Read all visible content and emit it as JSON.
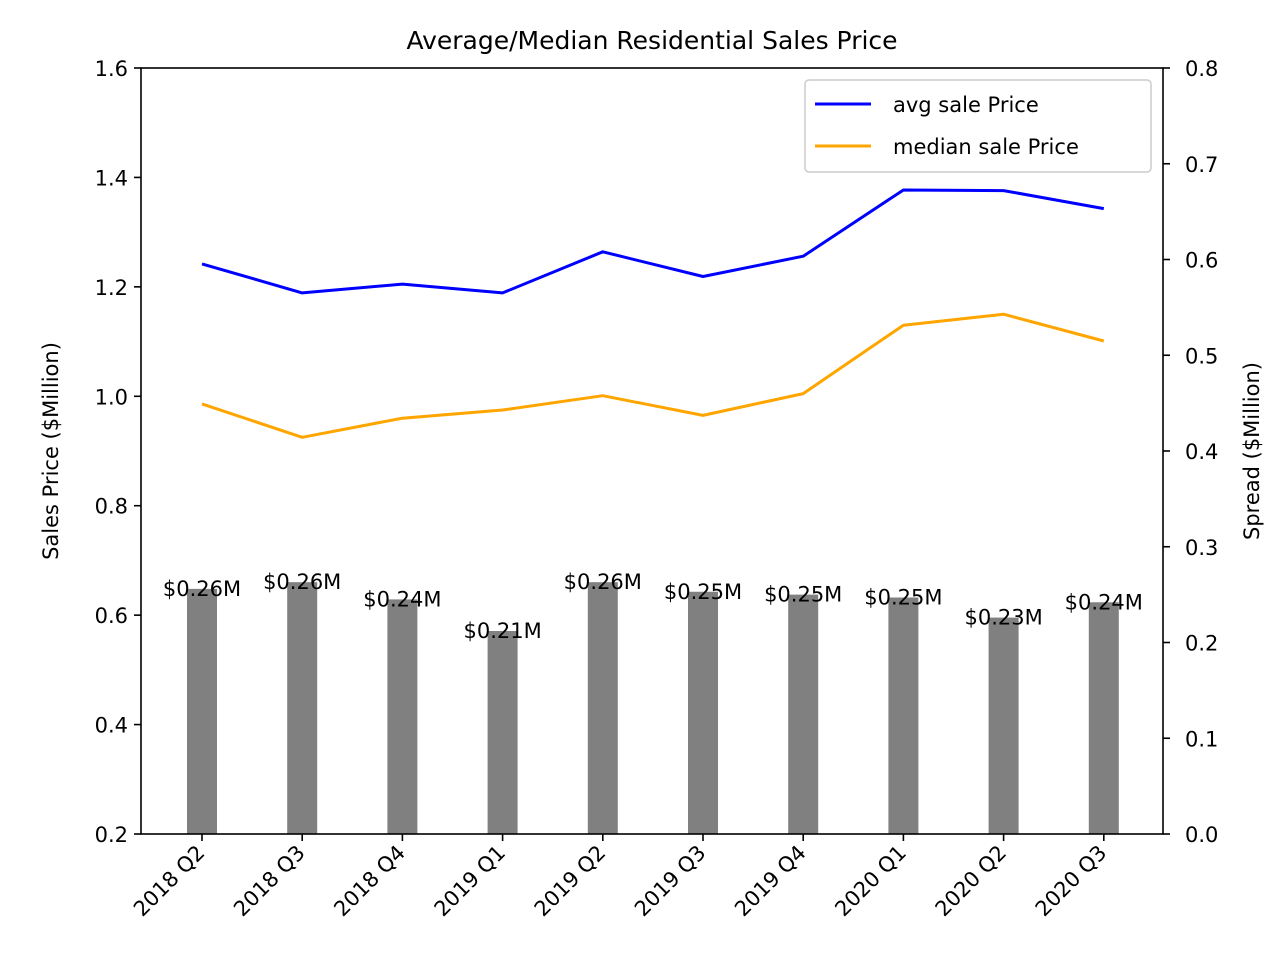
{
  "chart_data": {
    "type": "bar+line (dual axis)",
    "title": "Average/Median Residential Sales Price",
    "categories": [
      "2018 Q2",
      "2018 Q3",
      "2018 Q4",
      "2019 Q1",
      "2019 Q2",
      "2019 Q3",
      "2019 Q4",
      "2020 Q1",
      "2020 Q2",
      "2020 Q3"
    ],
    "left_axis": {
      "label": "Sales Price ($Million)",
      "ylim": [
        0.2,
        1.6
      ],
      "ticks": [
        "0.2",
        "0.4",
        "0.6",
        "0.8",
        "1.0",
        "1.2",
        "1.4",
        "1.6"
      ]
    },
    "right_axis": {
      "label": "Spread ($Million)",
      "ylim": [
        0.0,
        0.8
      ],
      "ticks": [
        "0.0",
        "0.1",
        "0.2",
        "0.3",
        "0.4",
        "0.5",
        "0.6",
        "0.7",
        "0.8"
      ]
    },
    "series": [
      {
        "name": "avg sale Price",
        "type": "line",
        "axis": "left",
        "color": "#0000ff",
        "values": [
          1.242,
          1.189,
          1.205,
          1.189,
          1.264,
          1.219,
          1.256,
          1.377,
          1.376,
          1.343
        ]
      },
      {
        "name": "median sale Price",
        "type": "line",
        "axis": "left",
        "color": "#ffa500",
        "values": [
          0.986,
          0.925,
          0.96,
          0.975,
          1.001,
          0.965,
          1.005,
          1.13,
          1.15,
          1.101
        ]
      },
      {
        "type": "bar",
        "axis": "right",
        "color": "#808080",
        "values": [
          0.256,
          0.263,
          0.245,
          0.212,
          0.263,
          0.253,
          0.25,
          0.247,
          0.226,
          0.242
        ],
        "labels": [
          "$0.26M",
          "$0.26M",
          "$0.24M",
          "$0.21M",
          "$0.26M",
          "$0.25M",
          "$0.25M",
          "$0.25M",
          "$0.23M",
          "$0.24M"
        ]
      }
    ],
    "legend": {
      "placement": "top-right",
      "entries": [
        "avg sale Price",
        "median sale Price"
      ]
    },
    "grid": false
  }
}
